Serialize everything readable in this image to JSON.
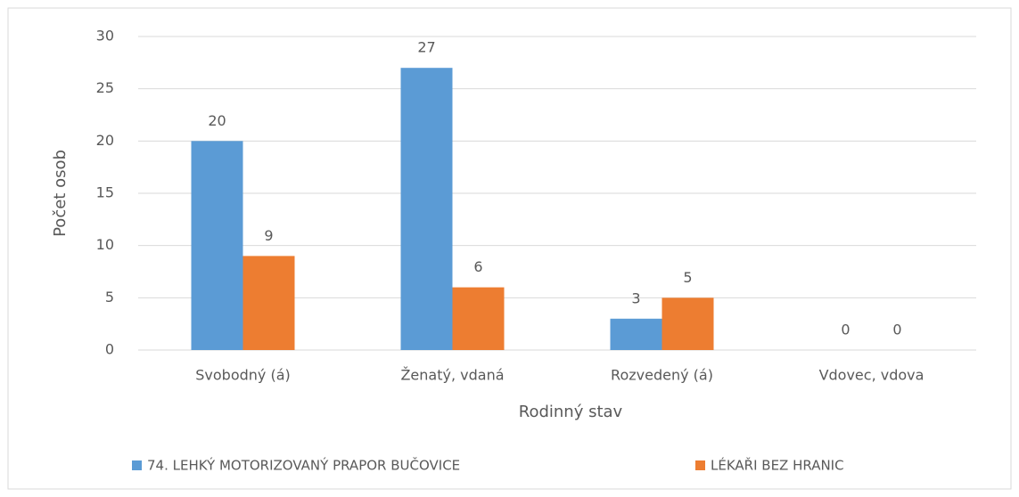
{
  "chart_data": {
    "type": "bar",
    "xlabel": "Rodinný stav",
    "ylabel": "Počet osob",
    "categories": [
      "Svobodný (á)",
      "Ženatý, vdaná",
      "Rozvedený (á)",
      "Vdovec, vdova"
    ],
    "series": [
      {
        "name": "74. LEHKÝ MOTORIZOVANÝ PRAPOR BUČOVICE",
        "color": "#5b9bd5",
        "values": [
          20,
          27,
          3,
          0
        ]
      },
      {
        "name": "LÉKAŘI BEZ HRANIC",
        "color": "#ed7d31",
        "values": [
          9,
          6,
          5,
          0
        ]
      }
    ],
    "ylim": [
      0,
      30
    ],
    "yticks": [
      0,
      5,
      10,
      15,
      20,
      25,
      30
    ],
    "grid": true,
    "legend": "bottom"
  }
}
